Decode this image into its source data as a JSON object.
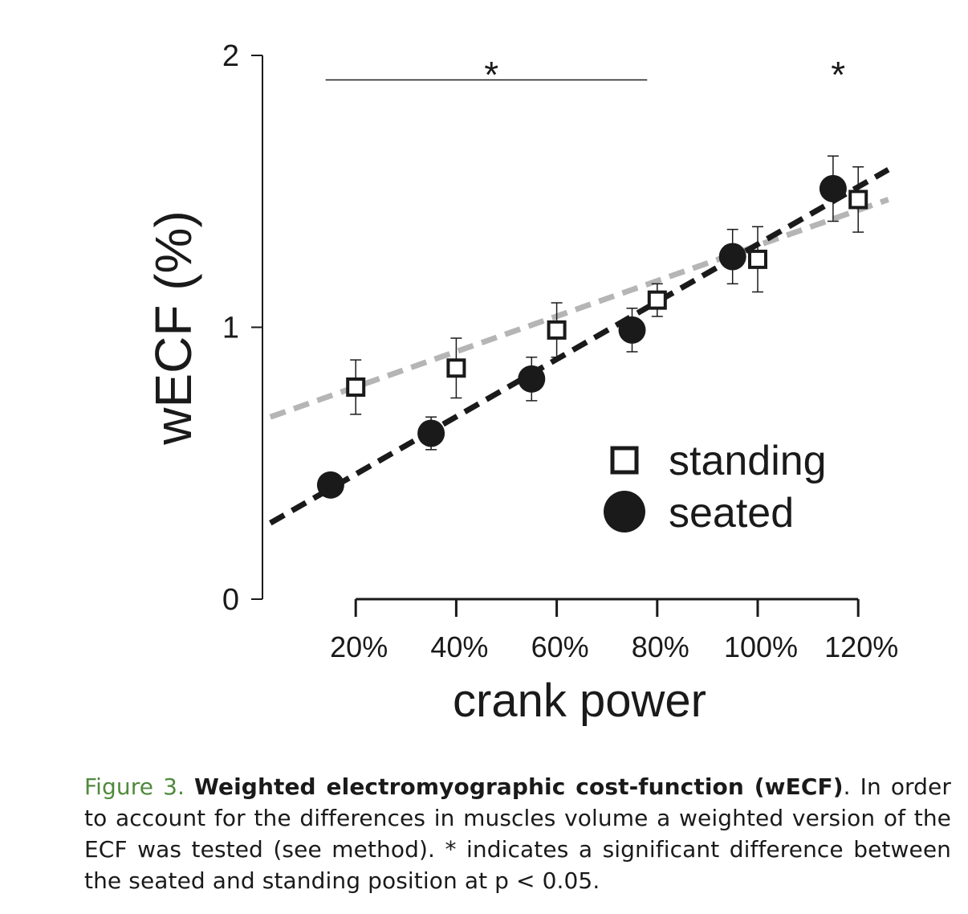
{
  "chart_data": {
    "type": "scatter",
    "xlabel": "crank power",
    "ylabel": "wECF (%)",
    "x_tick_labels": [
      "20%",
      "40%",
      "60%",
      "80%",
      "100%",
      "120%"
    ],
    "y_tick_labels": [
      "0",
      "1",
      "2"
    ],
    "ylim": [
      0,
      2
    ],
    "xlim": [
      0,
      140
    ],
    "grid": false,
    "legend_position": "lower-right",
    "series": [
      {
        "name": "standing",
        "marker": "open-square",
        "color": "#1a1a1a",
        "x": [
          20,
          40,
          60,
          80,
          100,
          120
        ],
        "y": [
          0.78,
          0.85,
          0.99,
          1.1,
          1.25,
          1.47
        ],
        "error": [
          0.1,
          0.11,
          0.1,
          0.06,
          0.12,
          0.12
        ],
        "trend_color": "#b5b5b5",
        "trend": [
          [
            3,
            0.67
          ],
          [
            126,
            1.47
          ]
        ]
      },
      {
        "name": "seated",
        "marker": "filled-circle",
        "color": "#1a1a1a",
        "x": [
          15,
          35,
          55,
          75,
          95,
          115
        ],
        "y": [
          0.42,
          0.61,
          0.81,
          0.99,
          1.26,
          1.51
        ],
        "error": [
          0.04,
          0.06,
          0.08,
          0.08,
          0.1,
          0.12
        ],
        "trend_color": "#1a1a1a",
        "trend": [
          [
            3,
            0.28
          ],
          [
            126,
            1.58
          ]
        ]
      }
    ],
    "annotations": [
      {
        "text": "*",
        "x": 47,
        "y": 1.97,
        "bar_from": 14,
        "bar_to": 78,
        "bar_y": 1.91
      },
      {
        "text": "*",
        "x": 116,
        "y": 1.97
      }
    ]
  },
  "caption": {
    "label": "Figure 3.",
    "title": "Weighted electromyographic cost-function (wECF)",
    "body": ". In order to account for the differences in muscles volume a weighted version of the ECF was tested (see method). * indicates a significant difference between the seated and standing position at p < 0.05."
  }
}
